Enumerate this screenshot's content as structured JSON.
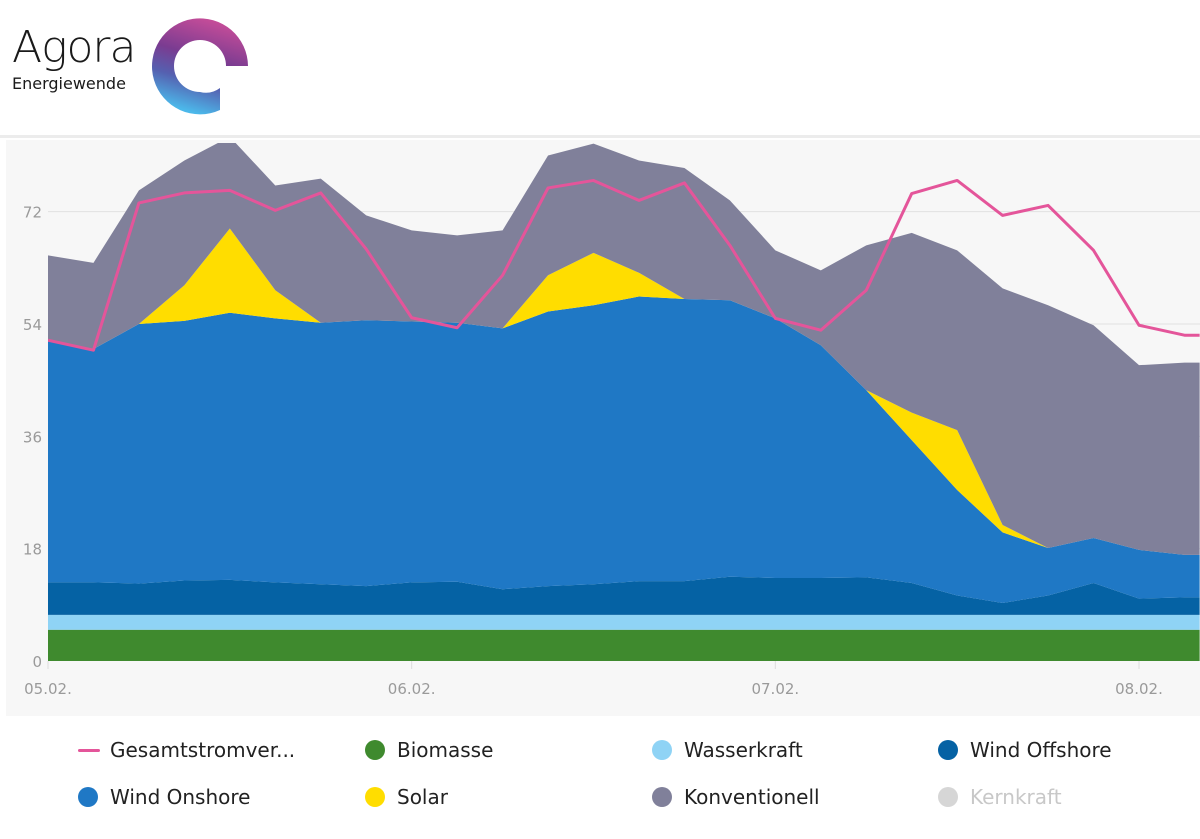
{
  "brand": {
    "name": "Agora",
    "sub": "Energiewende"
  },
  "chart_data": {
    "type": "area",
    "title": "",
    "xlabel": "",
    "ylabel": "",
    "ylim": [
      0,
      83
    ],
    "yticks": [
      "0",
      "18",
      "36",
      "54",
      "72"
    ],
    "ytick_values": [
      0,
      18,
      36,
      54,
      72
    ],
    "xticks": [
      "05.02.",
      "06.02.",
      "07.02.",
      "08.02."
    ],
    "xtick_hours": [
      0,
      24,
      48,
      72
    ],
    "x_hours": [
      0,
      3,
      6,
      9,
      12,
      15,
      18,
      21,
      24,
      27,
      30,
      33,
      36,
      39,
      42,
      45,
      48,
      51,
      54,
      57,
      60,
      63,
      66,
      69,
      72,
      75
    ],
    "x_max_hours": 76,
    "grid": true,
    "legend_position": "bottom",
    "stacked_series": [
      {
        "name": "Biomasse",
        "color": "#3f8a2e",
        "values": [
          5,
          5,
          5,
          5,
          5,
          5,
          5,
          5,
          5,
          5,
          5,
          5,
          5,
          5,
          5,
          5,
          5,
          5,
          5,
          5,
          5,
          5,
          5,
          5,
          5,
          5
        ]
      },
      {
        "name": "Wasserkraft",
        "color": "#8fd3f5",
        "values": [
          2.4,
          2.4,
          2.4,
          2.4,
          2.4,
          2.4,
          2.4,
          2.4,
          2.4,
          2.4,
          2.4,
          2.4,
          2.4,
          2.4,
          2.4,
          2.4,
          2.4,
          2.4,
          2.4,
          2.4,
          2.4,
          2.4,
          2.4,
          2.4,
          2.4,
          2.4
        ]
      },
      {
        "name": "Wind Offshore",
        "color": "#0562a4",
        "values": [
          5.2,
          5.2,
          5.0,
          5.5,
          5.6,
          5.2,
          4.9,
          4.6,
          5.2,
          5.3,
          4.1,
          4.6,
          4.9,
          5.4,
          5.4,
          6.1,
          5.9,
          5.9,
          6.0,
          5.1,
          3.1,
          1.9,
          3.1,
          5.1,
          2.6,
          2.8
        ]
      },
      {
        "name": "Wind Onshore",
        "color": "#1f78c5",
        "values": [
          38.6,
          37.4,
          41.6,
          41.6,
          42.8,
          42.3,
          41.9,
          42.6,
          41.8,
          41.5,
          41.8,
          44.0,
          44.7,
          45.6,
          45.2,
          44.3,
          41.6,
          37.3,
          30.0,
          22.9,
          16.9,
          11.3,
          7.6,
          7.2,
          7.8,
          6.8
        ]
      },
      {
        "name": "Solar",
        "color": "#ffdd00",
        "values": [
          0,
          0,
          0,
          5.7,
          13.5,
          4.5,
          0,
          0,
          0,
          0,
          0,
          5.8,
          8.4,
          3.8,
          0,
          0,
          0,
          0,
          0,
          4.4,
          9.6,
          1.2,
          0,
          0,
          0,
          0
        ]
      },
      {
        "name": "Konventionell",
        "color": "#80809a",
        "values": [
          13.8,
          13.8,
          21.4,
          20.0,
          14.7,
          16.8,
          23.1,
          16.8,
          14.6,
          14.0,
          15.7,
          19.2,
          17.5,
          18.0,
          21.0,
          16.0,
          10.9,
          12.0,
          23.2,
          28.8,
          28.8,
          37.9,
          38.9,
          34.1,
          29.6,
          30.8
        ]
      },
      {
        "name": "Kernkraft",
        "color": "#d0d0d0",
        "hidden": true,
        "values": []
      }
    ],
    "line_series": {
      "name": "Gesamtstromver...",
      "color": "#e4559a",
      "values": [
        51.4,
        49.8,
        73.4,
        75,
        75.4,
        72.2,
        75,
        66,
        55,
        53.4,
        61.8,
        75.8,
        77,
        73.8,
        76.6,
        66.6,
        54.9,
        53,
        59.4,
        74.9,
        77,
        71.4,
        73,
        65.8,
        53.8,
        52.2
      ]
    }
  },
  "legend": [
    {
      "label": "Gesamtstromver...",
      "color": "#e4559a",
      "marker": "line"
    },
    {
      "label": "Biomasse",
      "color": "#3f8a2e",
      "marker": "dot"
    },
    {
      "label": "Wasserkraft",
      "color": "#8fd3f5",
      "marker": "dot"
    },
    {
      "label": "Wind Offshore",
      "color": "#0562a4",
      "marker": "dot"
    },
    {
      "label": "Wind Onshore",
      "color": "#1f78c5",
      "marker": "dot"
    },
    {
      "label": "Solar",
      "color": "#ffdd00",
      "marker": "dot"
    },
    {
      "label": "Konventionell",
      "color": "#80809a",
      "marker": "dot"
    },
    {
      "label": "Kernkraft",
      "color": "#d6d6d6",
      "marker": "dot",
      "disabled": true
    }
  ]
}
